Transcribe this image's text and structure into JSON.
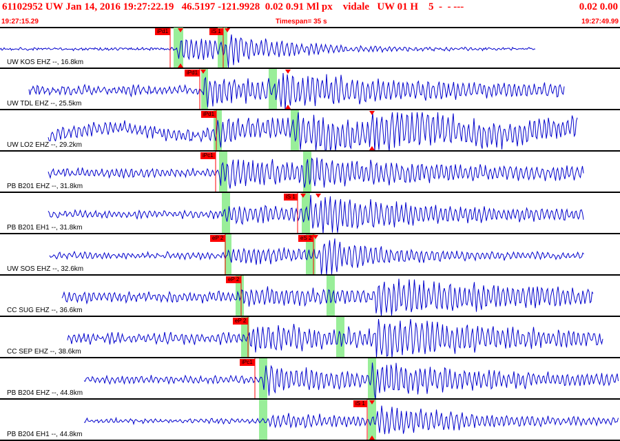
{
  "header": {
    "title": "61102952 UW Jan 14, 2016 19:27:22.19   46.5197 -121.9928  0.02 0.91 Ml px    vidale   UW 01 H    5  -  - ---",
    "title_right": "0.02 0.00",
    "start_time": "19:27:15.29",
    "timespan": "Timespan=  35 s",
    "end_time": "19:27:49.99"
  },
  "colors": {
    "header_text": "#ff0000",
    "trace": "#0000cc",
    "pick": "#ff0000",
    "window": "#99ee99",
    "pick_marker": "#ff0000"
  },
  "channels": [
    {
      "label": "UW KOS EHZ --, 16.8km",
      "picks": [
        "iPd1",
        "iS 1"
      ]
    },
    {
      "label": "UW TDL EHZ --, 25.5km",
      "picks": [
        "iPd1"
      ]
    },
    {
      "label": "UW LO2 EHZ --, 29.2km",
      "picks": [
        "iPd1"
      ]
    },
    {
      "label": "PB B201 EHZ --, 31.8km",
      "picks": [
        "iPc1"
      ]
    },
    {
      "label": "PB B201 EH1 --, 31.8km",
      "picks": [
        "iS 1"
      ]
    },
    {
      "label": "UW SOS EHZ --, 32.6km",
      "picks": [
        "eP 2",
        "eS 2"
      ]
    },
    {
      "label": "CC SUG EHZ --, 36.6km",
      "picks": [
        "eP 2"
      ]
    },
    {
      "label": "CC SEP EHZ --, 38.6km",
      "picks": [
        "eP 2"
      ]
    },
    {
      "label": "PB B204 EHZ --, 44.8km",
      "picks": [
        "iPc1"
      ]
    },
    {
      "label": "PB B204 EH1 --, 44.8km",
      "picks": [
        "iS 1"
      ]
    }
  ]
}
